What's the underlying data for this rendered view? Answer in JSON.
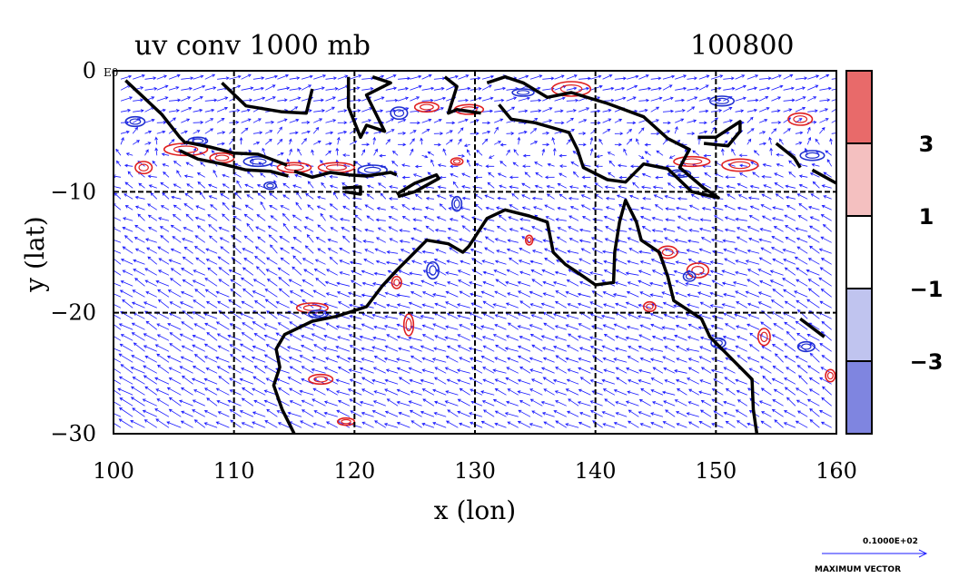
{
  "chart_data": {
    "type": "vector-contour-map",
    "title": "uv conv 1000 mb",
    "timestamp": "100800",
    "xlabel": "x (lon)",
    "ylabel": "y (lat)",
    "xlim": [
      100,
      160
    ],
    "ylim": [
      -30,
      0
    ],
    "x_ticks": [
      "100",
      "110",
      "120",
      "130",
      "140",
      "150",
      "160"
    ],
    "y_ticks": [
      "0",
      "−10",
      "−20",
      "−30"
    ],
    "corner_note": "E0",
    "colorbar": {
      "levels": [
        "3",
        "1",
        "−1",
        "−3"
      ],
      "bands": [
        {
          "from": 3,
          "to": 5,
          "color": "#e86a6a"
        },
        {
          "from": 1,
          "to": 3,
          "color": "#f4c0c0"
        },
        {
          "from": -1,
          "to": 1,
          "color": "#ffffff"
        },
        {
          "from": -3,
          "to": -1,
          "color": "#c0c4ef"
        },
        {
          "from": -5,
          "to": -3,
          "color": "#7f85e0"
        }
      ],
      "range": [
        -5,
        5
      ]
    },
    "vector_color": "#1a1aff",
    "positive_contour_color": "#e02020",
    "negative_contour_color": "#2030d0",
    "coast_color": "#000000",
    "reference_vector": {
      "value_label": "0.1000E+02",
      "caption": "MAXIMUM VECTOR"
    }
  }
}
